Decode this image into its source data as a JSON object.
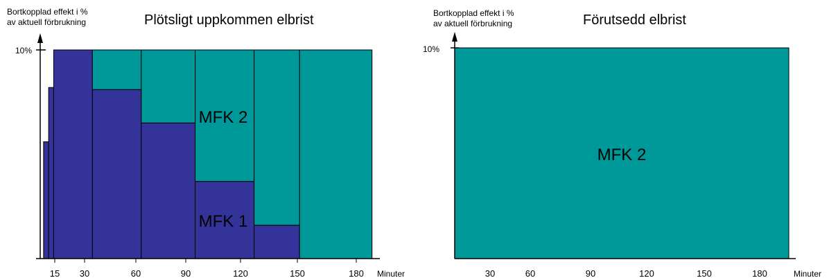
{
  "chart_data": [
    {
      "type": "bar",
      "title": "Plötsligt uppkommen elbrist",
      "ylabel_lines": [
        "Bortkopplad effekt i %",
        "av aktuell förbrukning"
      ],
      "xlabel": "Minuter",
      "y_tick_label": "10%",
      "ylim": [
        0,
        10
      ],
      "x_tick_labels": [
        "15",
        "30",
        "60",
        "90",
        "120",
        "150",
        "180"
      ],
      "series": [
        {
          "name": "MFK 1",
          "color": "#333399",
          "segments": [
            {
              "x0": 2,
              "x1": 5,
              "value": 5.6
            },
            {
              "x0": 5,
              "x1": 8,
              "value": 8.2
            },
            {
              "x0": 8,
              "x1": 31,
              "value": 10
            },
            {
              "x0": 31,
              "x1": 60,
              "value": 8.1
            },
            {
              "x0": 60,
              "x1": 92,
              "value": 6.5
            },
            {
              "x0": 92,
              "x1": 127,
              "value": 3.7
            },
            {
              "x0": 127,
              "x1": 154,
              "value": 1.6
            },
            {
              "x0": 154,
              "x1": 197,
              "value": 0
            }
          ]
        },
        {
          "name": "MFK 2",
          "color": "#009999",
          "segments": [
            {
              "x0": 31,
              "x1": 60,
              "value": 1.9
            },
            {
              "x0": 60,
              "x1": 92,
              "value": 3.5
            },
            {
              "x0": 92,
              "x1": 127,
              "value": 6.3
            },
            {
              "x0": 127,
              "x1": 154,
              "value": 8.4
            },
            {
              "x0": 154,
              "x1": 197,
              "value": 10
            }
          ]
        }
      ],
      "annotations": [
        {
          "text": "MFK 2",
          "x": 110,
          "y": 6.8
        },
        {
          "text": "MFK 1",
          "x": 110,
          "y": 1.8
        }
      ]
    },
    {
      "type": "area",
      "title": "Förutsedd elbrist",
      "ylabel_lines": [
        "Bortkopplad effekt i %",
        "av aktuell förbrukning"
      ],
      "xlabel": "Minuter",
      "y_tick_label": "10%",
      "ylim": [
        0,
        10
      ],
      "x_tick_labels": [
        "30",
        "60",
        "90",
        "120",
        "150",
        "180"
      ],
      "series": [
        {
          "name": "MFK 2",
          "color": "#009999",
          "x0": 0,
          "x1": 210,
          "value": 10
        }
      ],
      "annotations": [
        {
          "text": "MFK 2",
          "x": 105,
          "y": 5
        }
      ]
    }
  ]
}
